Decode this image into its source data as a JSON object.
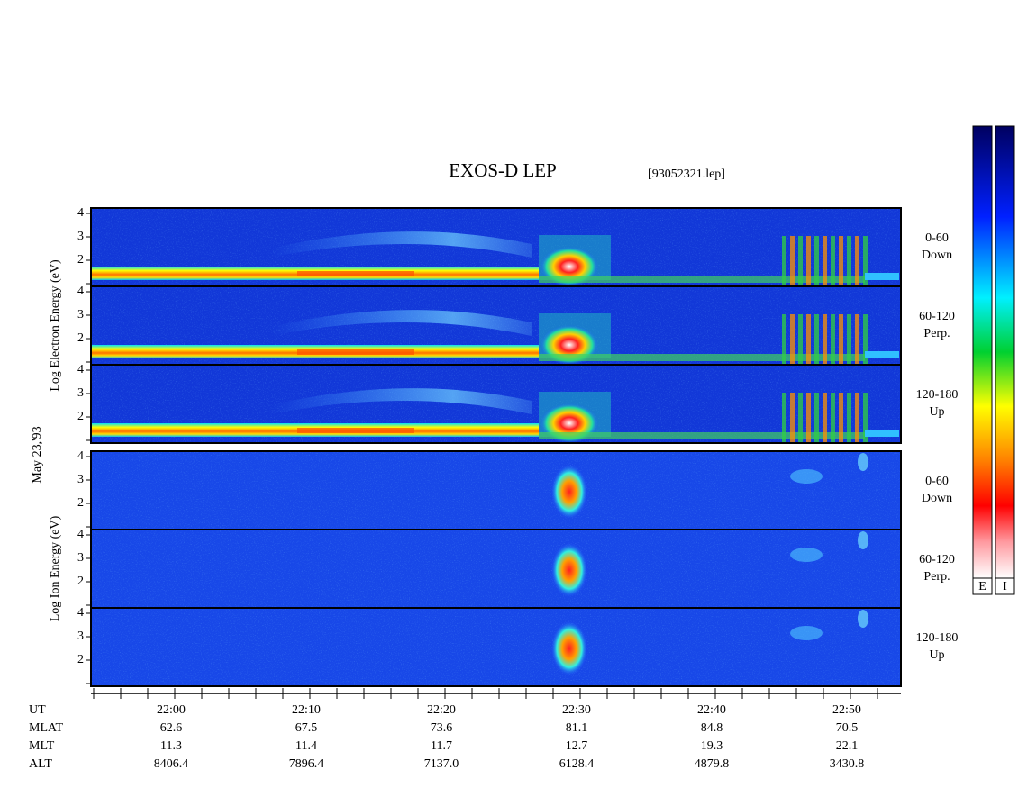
{
  "title": "EXOS-D LEP",
  "file": "[93052321.lep]",
  "date_label": "May 23,'93",
  "groups": [
    {
      "ylabel": "Log Electron Energy (eV)",
      "kind": "electron",
      "panels": [
        {
          "ticks": [
            "4",
            "3",
            "2"
          ],
          "pitch": "0-60",
          "direction": "Down"
        },
        {
          "ticks": [
            "4",
            "3",
            "2"
          ],
          "pitch": "60-120",
          "direction": "Perp."
        },
        {
          "ticks": [
            "4",
            "3",
            "2"
          ],
          "pitch": "120-180",
          "direction": "Up"
        }
      ]
    },
    {
      "ylabel": "Log Ion Energy (eV)",
      "kind": "ion",
      "panels": [
        {
          "ticks": [
            "4",
            "3",
            "2"
          ],
          "pitch": "0-60",
          "direction": "Down"
        },
        {
          "ticks": [
            "4",
            "3",
            "2"
          ],
          "pitch": "60-120",
          "direction": "Perp."
        },
        {
          "ticks": [
            "4",
            "3",
            "2"
          ],
          "pitch": "120-180",
          "direction": "Up"
        }
      ]
    }
  ],
  "colorbars": [
    "E",
    "I"
  ],
  "ephemeris": {
    "labels": [
      "UT",
      "MLAT",
      "MLT",
      "ALT"
    ],
    "values": [
      [
        "22:00",
        "22:10",
        "22:20",
        "22:30",
        "22:40",
        "22:50"
      ],
      [
        "62.6",
        "67.5",
        "73.6",
        "81.1",
        "84.8",
        "70.5"
      ],
      [
        "11.3",
        "11.4",
        "11.7",
        "12.7",
        "19.3",
        "22.1"
      ],
      [
        "8406.4",
        "7896.4",
        "7137.0",
        "6128.4",
        "4879.8",
        "3430.8"
      ]
    ]
  }
}
